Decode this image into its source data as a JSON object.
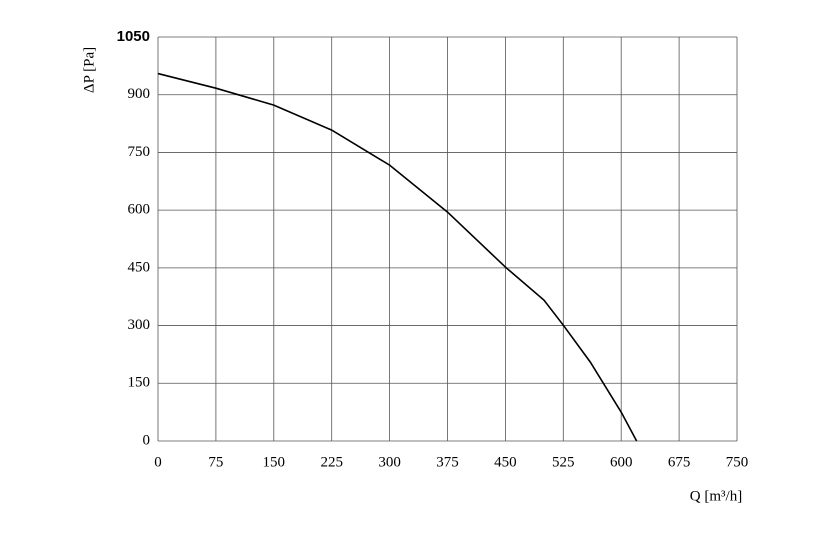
{
  "chart_data": {
    "type": "line",
    "x_label": "Q [m³/h]",
    "y_label": "ΔP [Pa]",
    "x": [
      0,
      75,
      150,
      225,
      300,
      375,
      450,
      500,
      525,
      560,
      600,
      620
    ],
    "series": [
      {
        "name": "curve",
        "color": "#000000",
        "values": [
          955,
          917,
          873,
          808,
          717,
          595,
          452,
          366,
          301,
          205,
          75,
          0
        ]
      }
    ],
    "xlim": [
      0,
      750
    ],
    "xticks": [
      0,
      75,
      150,
      225,
      300,
      375,
      450,
      525,
      600,
      675,
      750
    ],
    "ylim": [
      0,
      1050
    ],
    "yticks": [
      0,
      150,
      300,
      450,
      600,
      750,
      900,
      1050
    ],
    "grid": true
  }
}
